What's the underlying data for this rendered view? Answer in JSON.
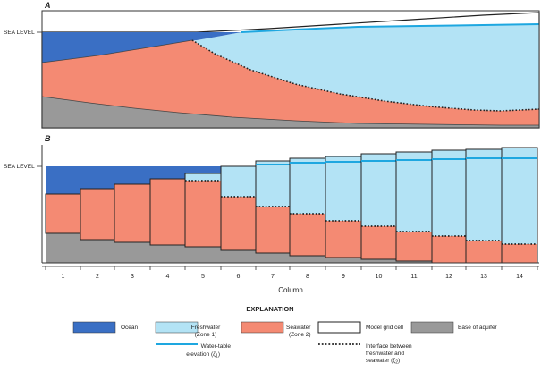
{
  "panel_a": {
    "letter": "A",
    "sea_level_label": "SEA LEVEL"
  },
  "panel_b": {
    "letter": "B",
    "sea_level_label": "SEA LEVEL"
  },
  "axis": {
    "title": "Column",
    "columns": [
      "1",
      "2",
      "3",
      "4",
      "5",
      "6",
      "7",
      "8",
      "9",
      "10",
      "11",
      "12",
      "13",
      "14"
    ]
  },
  "legend": {
    "title": "EXPLANATION",
    "ocean": "Ocean",
    "freshwater_line1": "Freshwater",
    "freshwater_line2": "(Zone 1)",
    "seawater_line1": "Seawater",
    "seawater_line2": "(Zone 2)",
    "model_grid_cell": "Model grid cell",
    "base_of_aquifer": "Base of aquifer",
    "water_table_line1": "Water-table",
    "water_table_line2": "elevation (ζ",
    "water_table_sub": "1",
    "water_table_close": ")",
    "interface_line1": "Interface between",
    "interface_line2": "freshwater and",
    "interface_line3": "seawater (ζ",
    "interface_sub": "2",
    "interface_close": ")"
  },
  "colors": {
    "ocean": "#3a6fc4",
    "freshwater": "#b3e3f5",
    "seawater": "#f48a73",
    "base": "#999999",
    "water_table": "#1ea7e0",
    "frame": "#333333"
  }
}
